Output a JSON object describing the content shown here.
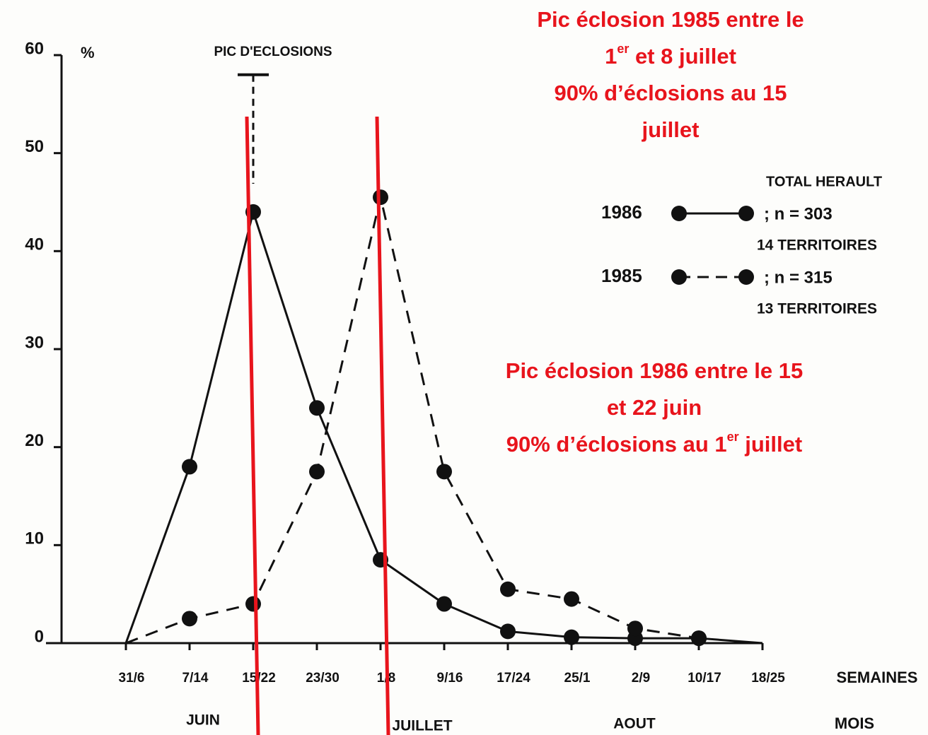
{
  "chart_data": {
    "type": "line",
    "y_label": "%",
    "x_label": "SEMAINES",
    "period_label": "MOIS",
    "months": [
      "JUIN",
      "JUILLET",
      "AOUT"
    ],
    "categories": [
      "31/6",
      "7/14",
      "15/22",
      "23/30",
      "1/8",
      "9/16",
      "17/24",
      "25/1",
      "2/9",
      "10/17",
      "18/25"
    ],
    "series": [
      {
        "name": "1986",
        "color": "#111111",
        "dashed": false,
        "n_label": "; n = 303",
        "territories": "14 TERRITOIRES",
        "values": [
          0,
          18,
          44,
          24,
          8.5,
          4,
          1.2,
          0.6,
          0.5,
          0.5,
          0
        ]
      },
      {
        "name": "1985",
        "color": "#111111",
        "dashed": true,
        "n_label": "; n = 315",
        "territories": "13 TERRITOIRES",
        "values": [
          0,
          2.5,
          4,
          17.5,
          45.5,
          17.5,
          5.5,
          4.5,
          1.5,
          0.5,
          null
        ]
      }
    ],
    "legend_title": "TOTAL HERAULT",
    "ylim": [
      0,
      60
    ],
    "yticks": [
      0,
      10,
      20,
      30,
      40,
      50,
      60
    ],
    "peak_annotation": {
      "text": "PIC D'ECLOSIONS",
      "at": "15/22",
      "value": 58
    },
    "notes": [
      {
        "color": "#e8141c",
        "lines": [
          [
            {
              "text": "Pic éclosion 1985 entre le"
            }
          ],
          [
            {
              "text": "1"
            },
            {
              "text": "er",
              "sup": true
            },
            {
              "text": "  et 8 juillet"
            }
          ],
          [
            {
              "text": "90% d’éclosions au 15"
            }
          ],
          [
            {
              "text": "juillet"
            }
          ]
        ]
      },
      {
        "color": "#e8141c",
        "lines": [
          [
            {
              "text": "Pic éclosion 1986 entre le 15"
            }
          ],
          [
            {
              "text": "et 22 juin"
            }
          ],
          [
            {
              "text": "90% d’éclosions au 1"
            },
            {
              "text": "er",
              "sup": true
            },
            {
              "text": " juillet"
            }
          ]
        ]
      }
    ]
  }
}
